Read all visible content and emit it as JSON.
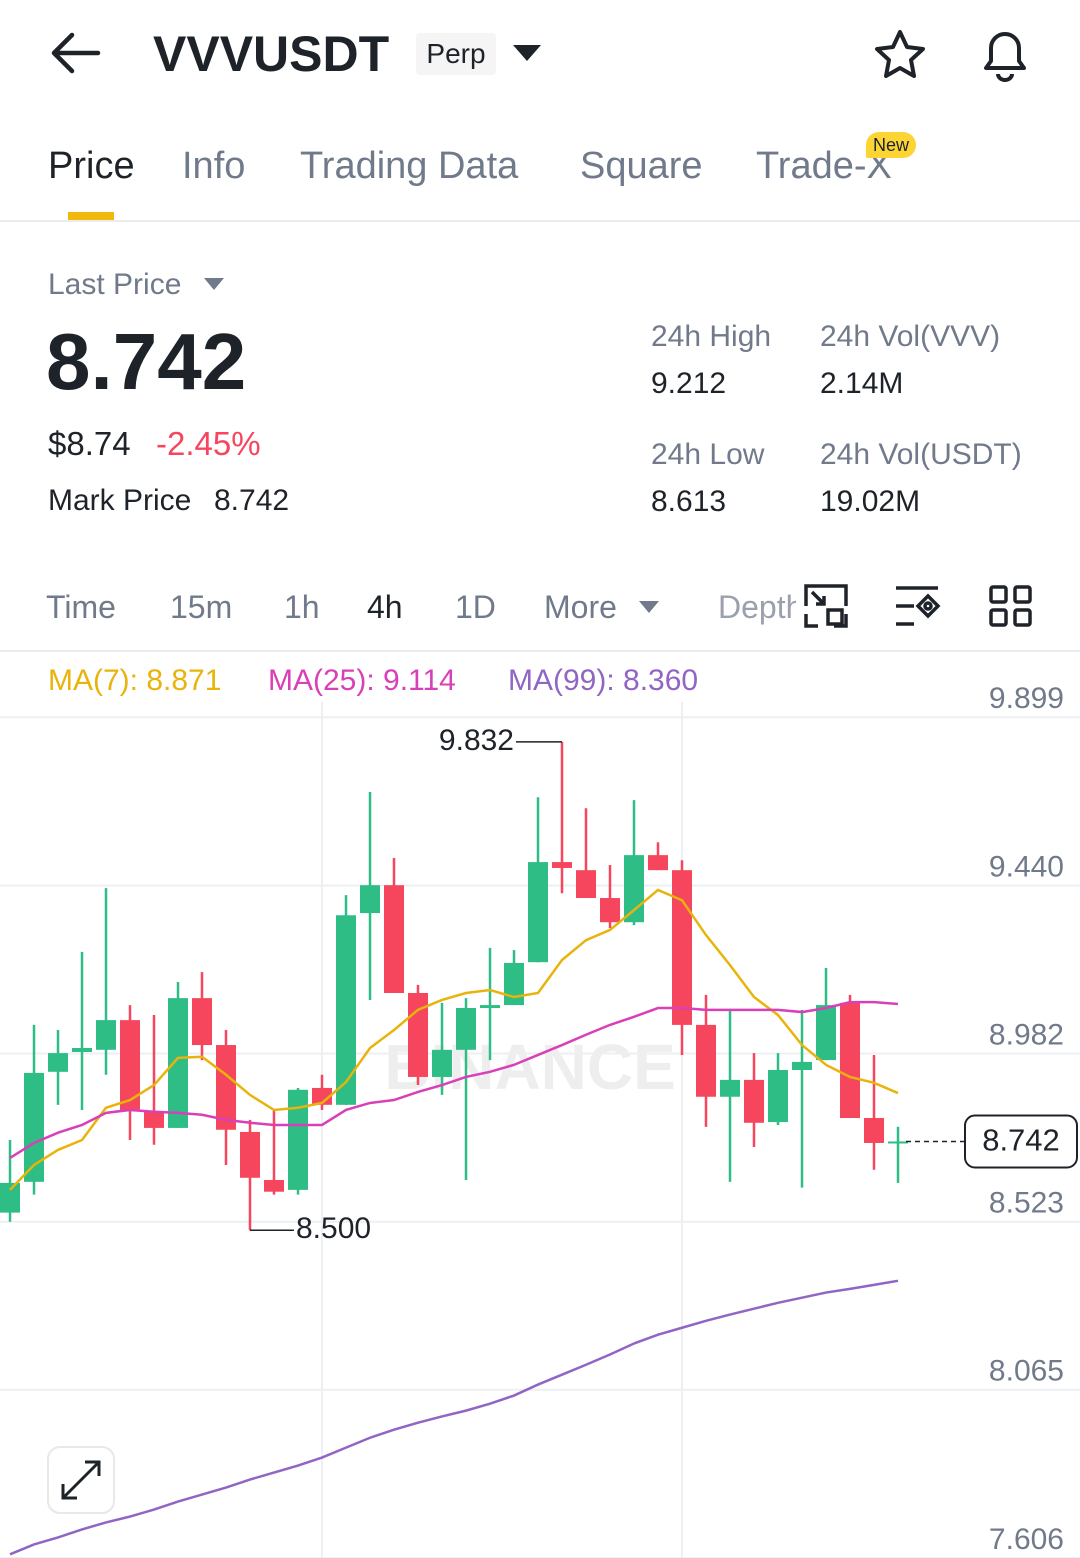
{
  "header": {
    "symbol": "VVVUSDT",
    "badge": "Perp"
  },
  "tabs": {
    "items": [
      "Price",
      "Info",
      "Trading Data",
      "Square",
      "Trade-X"
    ],
    "badge": "New"
  },
  "price_panel": {
    "label": "Last Price",
    "last_price": "8.742",
    "usd_price": "$8.74",
    "change": "-2.45%",
    "mark_label": "Mark Price",
    "mark_price": "8.742",
    "stats": [
      {
        "label": "24h High",
        "value": "9.212"
      },
      {
        "label": "24h Vol(VVV)",
        "value": "2.14M"
      },
      {
        "label": "24h Low",
        "value": "8.613"
      },
      {
        "label": "24h Vol(USDT)",
        "value": "19.02M"
      }
    ]
  },
  "toolbar": {
    "intervals": [
      "Time",
      "15m",
      "1h",
      "4h",
      "1D",
      "More",
      "Depth"
    ]
  },
  "watermark": "BINANCE",
  "chart_data": {
    "type": "candlestick",
    "up_color": "#2ebd85",
    "down_color": "#f6465d",
    "open": [
      8.548,
      8.632,
      8.932,
      8.986,
      8.992,
      9.073,
      8.823,
      8.779,
      9.133,
      9.005,
      8.768,
      8.637,
      8.61,
      8.888,
      8.842,
      9.365,
      9.441,
      9.147,
      8.918,
      8.992,
      9.106,
      9.114,
      9.231,
      9.504,
      9.482,
      9.406,
      9.34,
      9.523,
      9.482,
      9.06,
      8.864,
      8.91,
      8.795,
      8.937,
      8.964,
      9.12,
      8.806,
      8.738
    ],
    "high": [
      8.746,
      9.06,
      9.046,
      9.259,
      9.433,
      9.114,
      9.087,
      9.177,
      9.204,
      9.046,
      8.801,
      8.828,
      8.888,
      8.924,
      9.414,
      9.695,
      9.515,
      9.169,
      9.12,
      9.133,
      9.27,
      9.264,
      9.681,
      9.832,
      9.651,
      9.496,
      9.673,
      9.558,
      9.509,
      9.142,
      9.101,
      8.983,
      8.983,
      9.101,
      9.215,
      9.142,
      8.978,
      8.782
    ],
    "low": [
      8.523,
      8.597,
      8.842,
      8.828,
      8.924,
      8.746,
      8.733,
      8.779,
      8.964,
      8.678,
      8.5,
      8.597,
      8.597,
      8.828,
      8.842,
      9.128,
      9.147,
      8.896,
      8.869,
      8.637,
      8.964,
      9.114,
      9.231,
      9.419,
      9.406,
      9.324,
      9.332,
      9.482,
      8.978,
      8.782,
      8.632,
      8.727,
      8.787,
      8.616,
      8.964,
      8.806,
      8.665,
      8.629
    ],
    "close": [
      8.629,
      8.929,
      8.983,
      8.997,
      9.073,
      8.828,
      8.779,
      9.133,
      9.005,
      8.774,
      8.643,
      8.605,
      8.883,
      8.842,
      9.359,
      9.441,
      9.147,
      8.918,
      8.992,
      9.106,
      9.114,
      9.229,
      9.504,
      9.488,
      9.406,
      9.34,
      9.523,
      9.482,
      9.06,
      8.864,
      8.91,
      8.793,
      8.937,
      8.959,
      9.114,
      8.806,
      8.738,
      8.742
    ],
    "ma": [
      {
        "name": "MA(7): 8.871",
        "color": "#e8b40c",
        "values": [
          8.61,
          8.678,
          8.719,
          8.746,
          8.834,
          8.855,
          8.896,
          8.97,
          8.973,
          8.924,
          8.869,
          8.828,
          8.834,
          8.847,
          8.904,
          8.997,
          9.046,
          9.101,
          9.128,
          9.147,
          9.155,
          9.136,
          9.147,
          9.237,
          9.291,
          9.319,
          9.373,
          9.428,
          9.4,
          9.305,
          9.223,
          9.136,
          9.087,
          9.005,
          8.951,
          8.918,
          8.902,
          8.874
        ]
      },
      {
        "name": "MA(25): 9.114",
        "color": "#d940b8",
        "values": [
          8.697,
          8.738,
          8.766,
          8.787,
          8.82,
          8.828,
          8.823,
          8.82,
          8.815,
          8.801,
          8.793,
          8.787,
          8.787,
          8.787,
          8.828,
          8.847,
          8.855,
          8.877,
          8.896,
          8.918,
          8.932,
          8.951,
          8.978,
          9.005,
          9.033,
          9.06,
          9.082,
          9.106,
          9.106,
          9.101,
          9.101,
          9.101,
          9.101,
          9.095,
          9.106,
          9.122,
          9.122,
          9.117
        ]
      },
      {
        "name": "MA(99): 8.360",
        "color": "#9165c4",
        "values": [
          7.616,
          7.643,
          7.662,
          7.684,
          7.703,
          7.719,
          7.738,
          7.76,
          7.779,
          7.798,
          7.82,
          7.839,
          7.858,
          7.88,
          7.907,
          7.934,
          7.956,
          7.975,
          7.992,
          8.008,
          8.027,
          8.049,
          8.079,
          8.106,
          8.133,
          8.161,
          8.191,
          8.215,
          8.234,
          8.253,
          8.27,
          8.286,
          8.302,
          8.316,
          8.33,
          8.34,
          8.351,
          8.362
        ]
      }
    ],
    "annotations": [
      9.832,
      {
        "value": 8.5,
        "label": "8.500"
      }
    ],
    "last_price": 8.742,
    "ylim": [
      7.606,
      10.077
    ],
    "yticks": [
      9.899,
      {
        "value": 9.44,
        "label": "9.440"
      },
      8.982,
      8.523,
      8.065,
      7.606
    ],
    "grid": true
  }
}
